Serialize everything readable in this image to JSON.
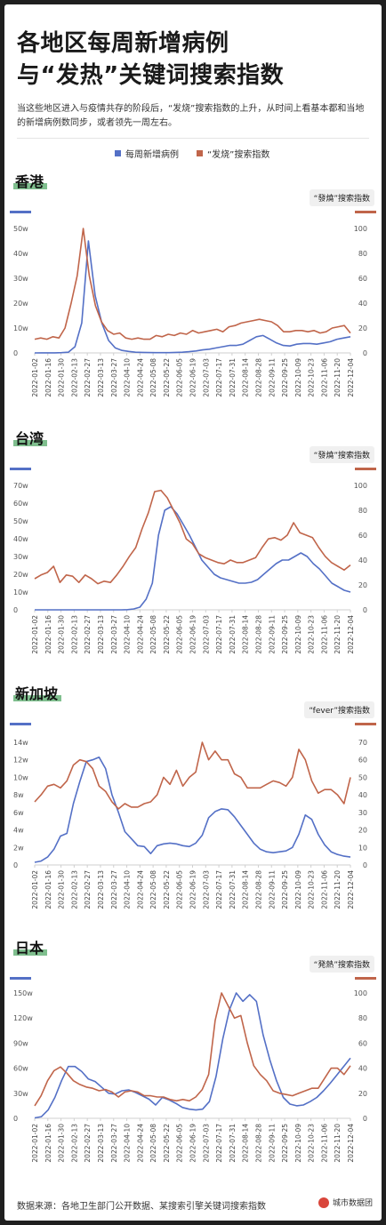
{
  "title": [
    "各地区每周新增病例",
    "与“发热”关键词搜索指数"
  ],
  "description": "当这些地区进入与疫情共存的阶段后，“发烧”搜索指数的上升，从时间上看基本都和当地的新增病例数同步，或者领先一周左右。",
  "legend": {
    "cases": "每周新增病例",
    "search": "“发烧”搜索指数"
  },
  "footer": "数据来源：各地卫生部门公开数据、某搜索引擎关键词搜索指数",
  "brand": "城市数据团",
  "colors": {
    "cases": "#5470c6",
    "search": "#c0654a",
    "tag": "#7fbf8e"
  },
  "chart_data": [
    {
      "type": "line",
      "region": "香港",
      "right_axis_label": "“發燒”搜索指数",
      "x_ticks": [
        "2022-01-02",
        "2022-01-16",
        "2022-01-30",
        "2022-02-13",
        "2022-02-27",
        "2022-03-13",
        "2022-03-27",
        "2022-04-10",
        "2022-04-24",
        "2022-05-08",
        "2022-05-22",
        "2022-06-05",
        "2022-06-19",
        "2022-07-03",
        "2022-07-17",
        "2022-07-31",
        "2022-08-14",
        "2022-08-28",
        "2022-09-11",
        "2022-09-25",
        "2022-10-09",
        "2022-10-23",
        "2022-11-06",
        "2022-11-20",
        "2022-12-04"
      ],
      "left_axis": {
        "ticks": [
          "0",
          "10w",
          "20w",
          "30w",
          "40w",
          "50w"
        ],
        "ylim": [
          0,
          500000
        ]
      },
      "right_axis": {
        "ticks": [
          "0",
          "20",
          "40",
          "60",
          "80",
          "100"
        ],
        "ylim": [
          0,
          100
        ]
      },
      "series": [
        {
          "name": "每周新增病例",
          "axis": "left",
          "values": [
            100,
            200,
            300,
            500,
            1000,
            3000,
            25000,
            120000,
            450000,
            230000,
            120000,
            50000,
            20000,
            10000,
            6000,
            3000,
            2000,
            1500,
            1000,
            1000,
            1000,
            2000,
            3000,
            5000,
            8000,
            12000,
            15000,
            20000,
            25000,
            30000,
            30000,
            35000,
            50000,
            65000,
            70000,
            55000,
            40000,
            30000,
            28000,
            35000,
            38000,
            38000,
            35000,
            40000,
            45000,
            55000,
            60000,
            65000
          ]
        },
        {
          "name": "“发烧”搜索指数",
          "axis": "right",
          "values": [
            11,
            12,
            11,
            13,
            12,
            20,
            40,
            62,
            100,
            62,
            38,
            25,
            18,
            15,
            16,
            12,
            11,
            12,
            11,
            11,
            14,
            13,
            15,
            14,
            16,
            15,
            18,
            16,
            17,
            18,
            19,
            17,
            21,
            22,
            24,
            25,
            26,
            27,
            26,
            25,
            22,
            17,
            17,
            18,
            18,
            17,
            18,
            16,
            17,
            20,
            21,
            22,
            16
          ]
        }
      ]
    },
    {
      "type": "line",
      "region": "台湾",
      "right_axis_label": "“發燒”搜索指数",
      "x_ticks": [
        "2022-01-02",
        "2022-01-16",
        "2022-01-30",
        "2022-02-13",
        "2022-02-27",
        "2022-03-13",
        "2022-03-27",
        "2022-04-10",
        "2022-04-24",
        "2022-05-08",
        "2022-05-22",
        "2022-06-05",
        "2022-06-19",
        "2022-07-03",
        "2022-07-17",
        "2022-07-31",
        "2022-08-14",
        "2022-08-28",
        "2022-09-11",
        "2022-09-25",
        "2022-10-09",
        "2022-10-23",
        "2022-11-06",
        "2022-11-20",
        "2022-12-04"
      ],
      "left_axis": {
        "ticks": [
          "0",
          "10w",
          "20w",
          "30w",
          "40w",
          "50w",
          "60w",
          "70w"
        ],
        "ylim": [
          0,
          700000
        ]
      },
      "right_axis": {
        "ticks": [
          "0",
          "20",
          "40",
          "60",
          "80",
          "100"
        ],
        "ylim": [
          0,
          100
        ]
      },
      "series": [
        {
          "name": "每周新增病例",
          "axis": "left",
          "values": [
            0,
            0,
            0,
            0,
            0,
            0,
            0,
            0,
            0,
            0,
            0,
            0,
            0,
            0,
            0,
            1000,
            5000,
            15000,
            60000,
            150000,
            420000,
            560000,
            580000,
            540000,
            480000,
            420000,
            350000,
            280000,
            240000,
            200000,
            180000,
            170000,
            160000,
            150000,
            150000,
            155000,
            170000,
            200000,
            230000,
            260000,
            280000,
            280000,
            300000,
            320000,
            300000,
            260000,
            230000,
            190000,
            150000,
            130000,
            110000,
            100000
          ]
        },
        {
          "name": "“发烧”搜索指数",
          "axis": "right",
          "values": [
            25,
            28,
            30,
            35,
            22,
            28,
            27,
            22,
            28,
            25,
            21,
            23,
            22,
            28,
            35,
            43,
            50,
            65,
            78,
            95,
            96,
            90,
            80,
            70,
            57,
            53,
            45,
            42,
            40,
            38,
            37,
            40,
            38,
            38,
            40,
            42,
            50,
            57,
            58,
            56,
            60,
            70,
            62,
            60,
            58,
            50,
            43,
            38,
            35,
            32,
            36
          ]
        }
      ]
    },
    {
      "type": "line",
      "region": "新加坡",
      "right_axis_label": "“fever”搜索指数",
      "x_ticks": [
        "2022-01-02",
        "2022-01-16",
        "2022-01-30",
        "2022-02-13",
        "2022-02-27",
        "2022-03-13",
        "2022-03-27",
        "2022-04-10",
        "2022-04-24",
        "2022-05-08",
        "2022-05-22",
        "2022-06-05",
        "2022-06-19",
        "2022-07-03",
        "2022-07-17",
        "2022-07-31",
        "2022-08-14",
        "2022-08-28",
        "2022-09-11",
        "2022-09-25",
        "2022-10-09",
        "2022-10-23",
        "2022-11-06",
        "2022-11-20",
        "2022-12-04"
      ],
      "left_axis": {
        "ticks": [
          "0",
          "2w",
          "4w",
          "6w",
          "8w",
          "10w",
          "12w",
          "14w"
        ],
        "ylim": [
          0,
          140000
        ]
      },
      "right_axis": {
        "ticks": [
          "0",
          "10",
          "20",
          "30",
          "40",
          "50",
          "60",
          "70"
        ],
        "ylim": [
          0,
          70
        ]
      },
      "series": [
        {
          "name": "每周新增病例",
          "axis": "left",
          "values": [
            3000,
            4500,
            9000,
            18000,
            33000,
            36000,
            70000,
            95000,
            118000,
            120000,
            123000,
            110000,
            80000,
            60000,
            38000,
            30000,
            22000,
            21000,
            13000,
            22000,
            24000,
            25000,
            24000,
            22000,
            21000,
            25000,
            34000,
            54000,
            61000,
            64000,
            63000,
            55000,
            45000,
            35000,
            25000,
            18000,
            15000,
            14000,
            15000,
            16000,
            20000,
            35000,
            57000,
            52000,
            35000,
            23000,
            15000,
            12000,
            10000,
            9000
          ]
        },
        {
          "name": "“发烧”搜索指数",
          "axis": "right",
          "values": [
            36,
            40,
            45,
            46,
            44,
            48,
            57,
            60,
            59,
            55,
            45,
            42,
            36,
            32,
            35,
            33,
            33,
            35,
            36,
            40,
            50,
            46,
            54,
            45,
            50,
            53,
            70,
            60,
            65,
            60,
            60,
            52,
            50,
            44,
            44,
            44,
            46,
            48,
            47,
            45,
            50,
            66,
            60,
            48,
            41,
            43,
            43,
            40,
            35,
            50
          ]
        }
      ]
    },
    {
      "type": "line",
      "region": "日本",
      "right_axis_label": "“発熱”搜索指数",
      "x_ticks": [
        "2022-01-02",
        "2022-01-16",
        "2022-01-30",
        "2022-02-13",
        "2022-02-27",
        "2022-03-13",
        "2022-03-27",
        "2022-04-10",
        "2022-04-24",
        "2022-05-08",
        "2022-05-22",
        "2022-06-05",
        "2022-06-19",
        "2022-07-03",
        "2022-07-17",
        "2022-07-31",
        "2022-08-14",
        "2022-08-28",
        "2022-09-11",
        "2022-09-25",
        "2022-10-09",
        "2022-10-23",
        "2022-11-06",
        "2022-11-20",
        "2022-12-04"
      ],
      "left_axis": {
        "ticks": [
          "0",
          "30w",
          "60w",
          "90w",
          "120w",
          "150w"
        ],
        "ylim": [
          0,
          1500000
        ]
      },
      "right_axis": {
        "ticks": [
          "0",
          "20",
          "40",
          "60",
          "80",
          "100"
        ],
        "ylim": [
          0,
          100
        ]
      },
      "series": [
        {
          "name": "每周新增病例",
          "axis": "left",
          "values": [
            5000,
            20000,
            100000,
            250000,
            450000,
            620000,
            620000,
            560000,
            470000,
            440000,
            370000,
            300000,
            290000,
            330000,
            340000,
            310000,
            270000,
            230000,
            160000,
            250000,
            220000,
            180000,
            130000,
            110000,
            100000,
            110000,
            200000,
            500000,
            950000,
            1300000,
            1500000,
            1400000,
            1480000,
            1400000,
            1000000,
            700000,
            450000,
            250000,
            170000,
            150000,
            160000,
            200000,
            250000,
            330000,
            420000,
            520000,
            620000,
            720000
          ]
        },
        {
          "name": "“发烧”搜索指数",
          "axis": "right",
          "values": [
            10,
            18,
            30,
            38,
            41,
            36,
            30,
            27,
            25,
            24,
            22,
            23,
            21,
            17,
            21,
            22,
            21,
            18,
            18,
            17,
            17,
            15,
            14,
            15,
            14,
            17,
            23,
            35,
            78,
            100,
            90,
            80,
            82,
            60,
            42,
            35,
            30,
            22,
            20,
            19,
            18,
            20,
            22,
            24,
            24,
            32,
            40,
            40,
            35,
            42
          ]
        }
      ]
    }
  ]
}
